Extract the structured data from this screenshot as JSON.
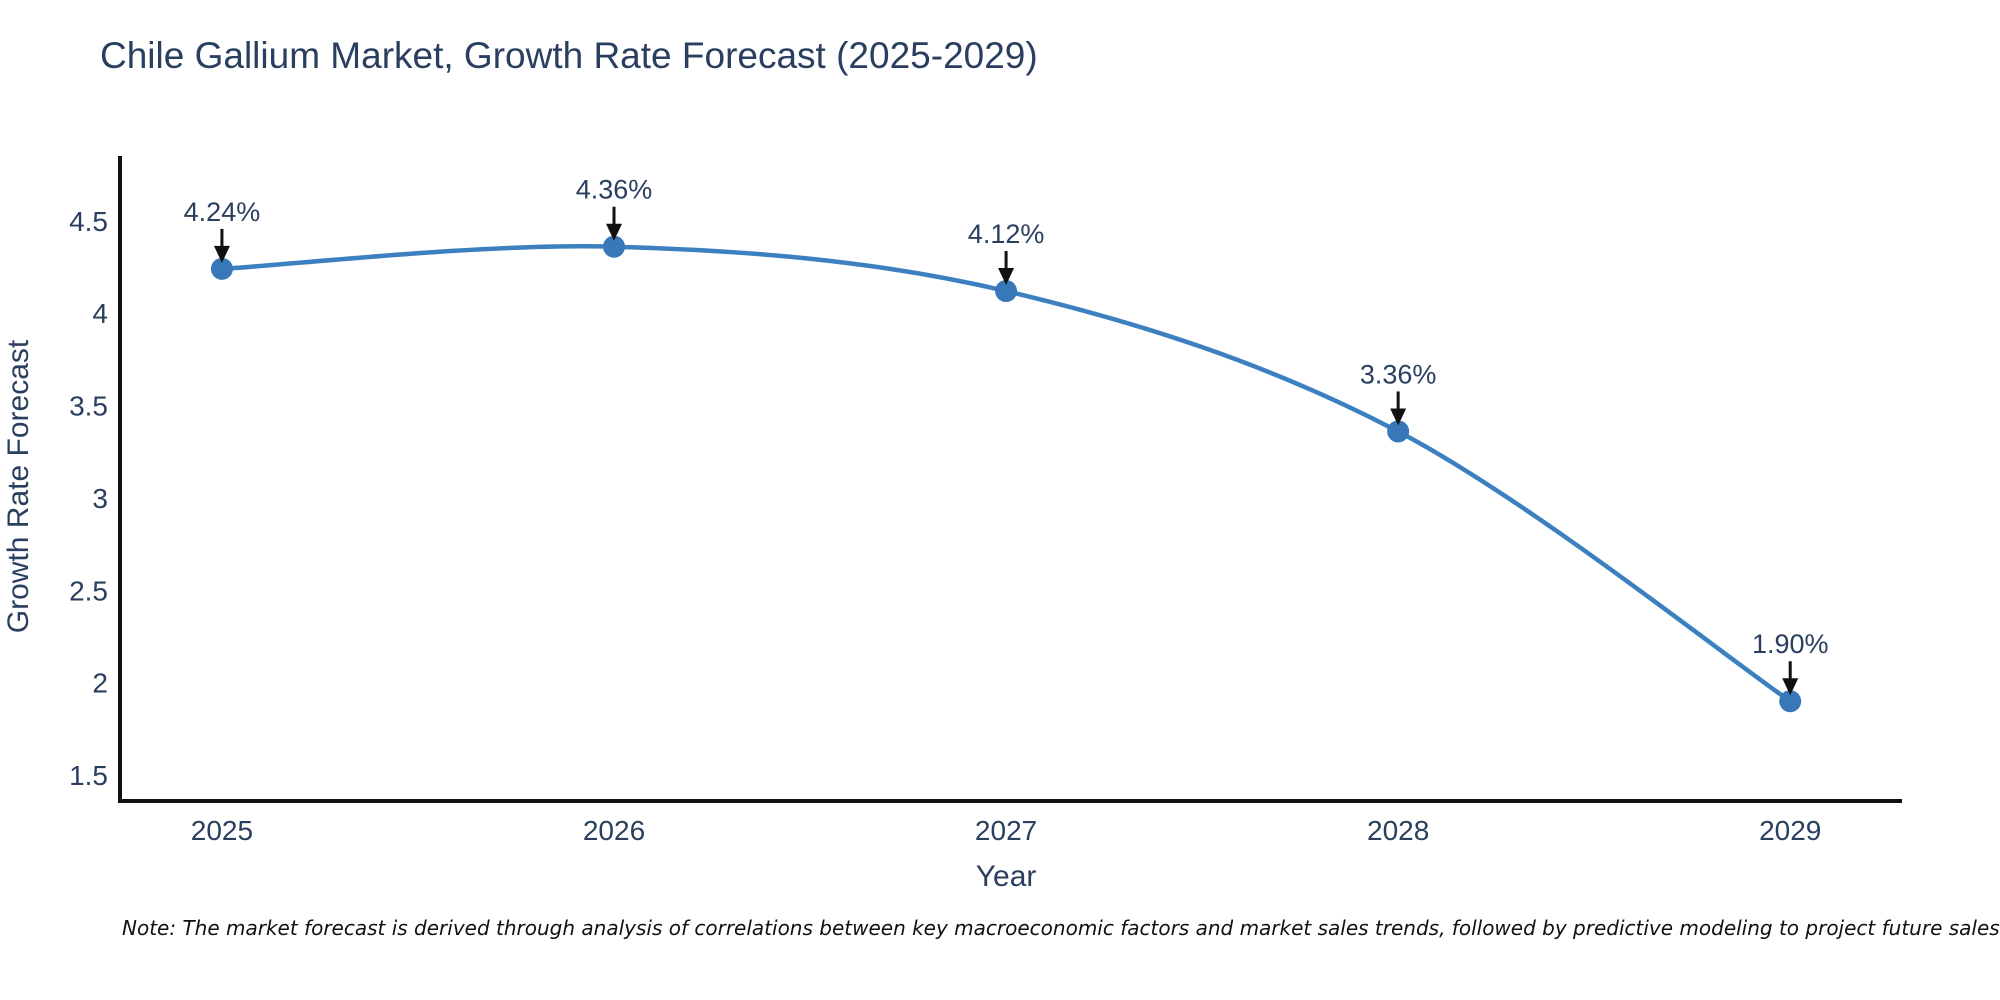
{
  "chart_data": {
    "type": "line",
    "title": "Chile Gallium Market, Growth Rate Forecast (2025-2029)",
    "xlabel": "Year",
    "ylabel": "Growth Rate Forecast",
    "categories": [
      2025,
      2026,
      2027,
      2028,
      2029
    ],
    "series": [
      {
        "name": "Growth Rate Forecast",
        "values": [
          4.24,
          4.36,
          4.12,
          3.36,
          1.9
        ]
      }
    ],
    "point_labels": [
      "4.24%",
      "4.36%",
      "4.12%",
      "3.36%",
      "1.90%"
    ],
    "xticks": [
      "2025",
      "2026",
      "2027",
      "2028",
      "2029"
    ],
    "yticks": [
      "1.5",
      "2",
      "2.5",
      "3",
      "3.5",
      "4",
      "4.5"
    ],
    "ytick_values": [
      1.5,
      2,
      2.5,
      3,
      3.5,
      4,
      4.5
    ],
    "xlim": [
      2024.74,
      2029.28
    ],
    "ylim": [
      1.36,
      4.84
    ],
    "grid": false,
    "legend": "none",
    "line_shape": "spline",
    "colors": {
      "line": "#3c80c0",
      "marker": "#3878b8",
      "axis": "#111111",
      "tick_text": "#2a3f5f",
      "title_text": "#2a3f5f",
      "axis_title_text": "#2a3f5f",
      "annotation_text": "#2a3f5f",
      "arrow": "#111111",
      "background": "#ffffff"
    }
  },
  "footnote": {
    "text": "Note: The market forecast is derived through analysis of correlations between key macroeconomic factors and market sales trends, followed by predictive modeling to project future sales"
  }
}
